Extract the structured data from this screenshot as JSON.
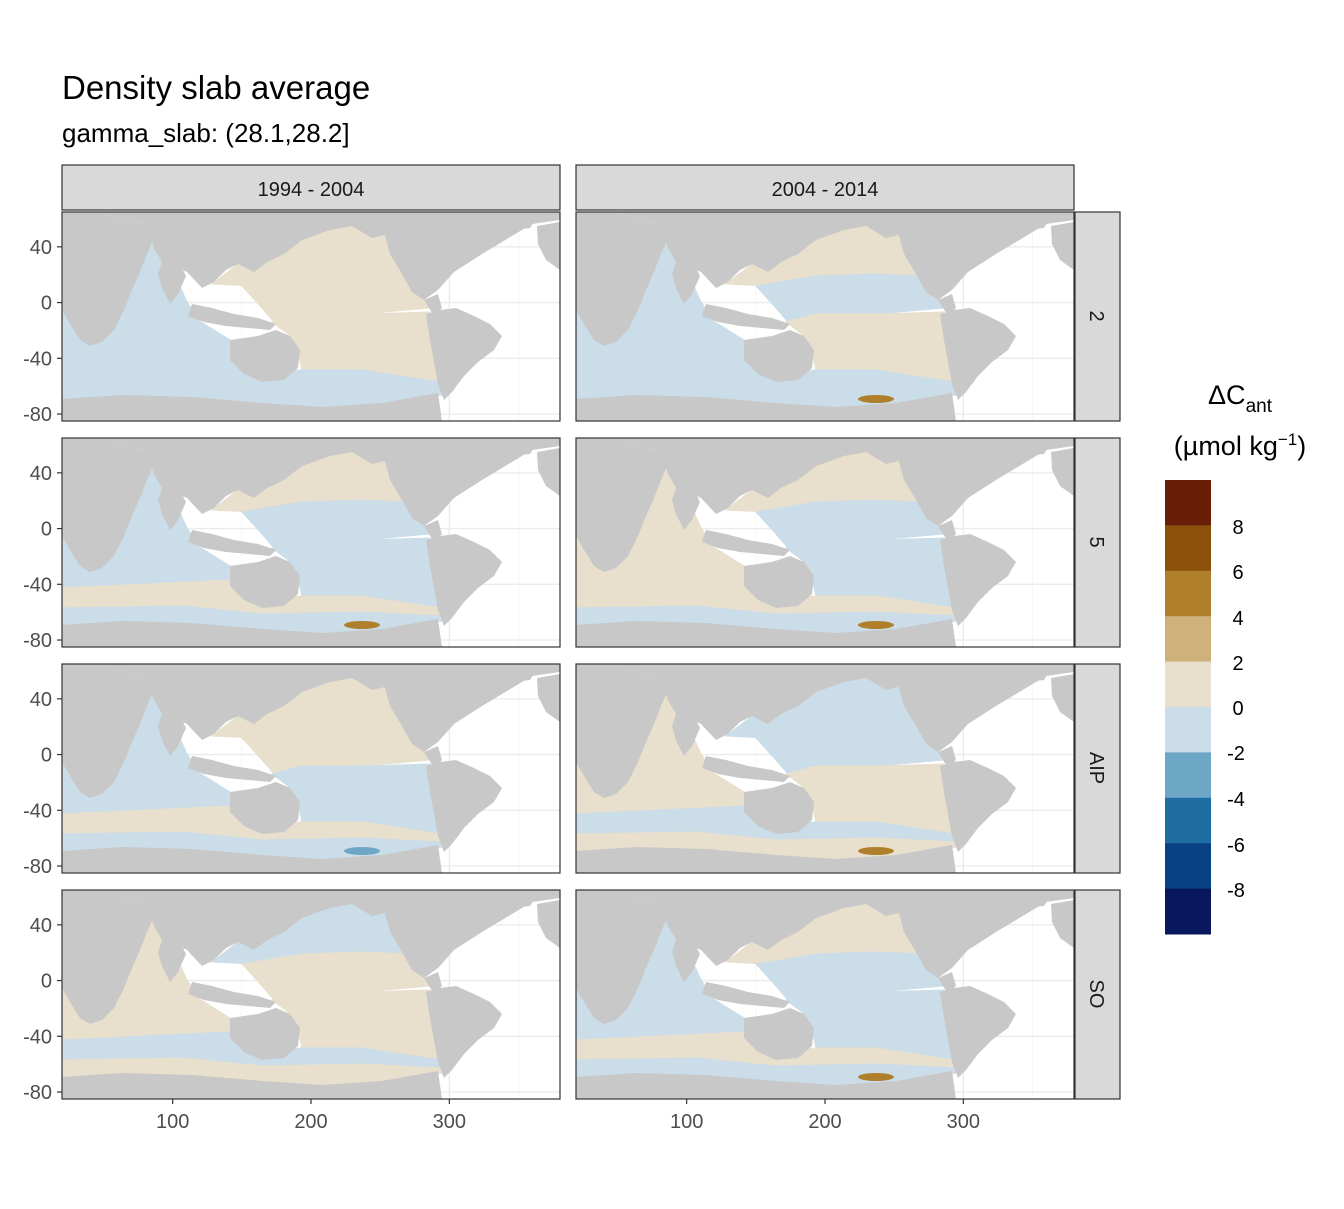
{
  "chart_data": {
    "type": "heatmap",
    "title": "Density slab average",
    "subtitle": "gamma_slab: (28.1,28.2]",
    "facet_columns": [
      "1994 - 2004",
      "2004 - 2014"
    ],
    "facet_rows": [
      "2",
      "5",
      "AIP",
      "SO"
    ],
    "x_axis": {
      "ticks": [
        100,
        200,
        300
      ],
      "range": [
        20,
        380
      ]
    },
    "y_axis": {
      "ticks": [
        40,
        0,
        -40,
        -80
      ],
      "range": [
        -85,
        65
      ]
    },
    "legend": {
      "title_main": "ΔC",
      "title_sub": "ant",
      "unit_pre": "(µmol kg",
      "unit_sup": "−1",
      "unit_post": ")",
      "placement": "right",
      "labels": [
        "8",
        "6",
        "4",
        "2",
        "0",
        "-2",
        "-4",
        "-6",
        "-8"
      ],
      "bins": [
        {
          "from": 8,
          "to": 10,
          "color": "#6b1e07"
        },
        {
          "from": 6,
          "to": 8,
          "color": "#8c510a"
        },
        {
          "from": 4,
          "to": 6,
          "color": "#b07f2c"
        },
        {
          "from": 2,
          "to": 4,
          "color": "#cfb17b"
        },
        {
          "from": 0,
          "to": 2,
          "color": "#e8dfcc"
        },
        {
          "from": -2,
          "to": 0,
          "color": "#cadde8"
        },
        {
          "from": -4,
          "to": -2,
          "color": "#6ea6c6"
        },
        {
          "from": -6,
          "to": -4,
          "color": "#1f6ea3"
        },
        {
          "from": -8,
          "to": -6,
          "color": "#084285"
        },
        {
          "from": -10,
          "to": -8,
          "color": "#08175e"
        }
      ]
    },
    "land_color": "#c8c8c8",
    "panels": [
      {
        "row": "2",
        "col": "1994 - 2004",
        "pacific_north": 1,
        "pacific_mid": 1,
        "south_pacific": 1,
        "indian": -1,
        "south_band": -1,
        "southern_ocean": -1,
        "hotspot": 0
      },
      {
        "row": "2",
        "col": "2004 - 2014",
        "pacific_north": 1,
        "pacific_mid": -1,
        "south_pacific": 1,
        "indian": -1,
        "south_band": -1,
        "southern_ocean": -1,
        "hotspot": 5
      },
      {
        "row": "5",
        "col": "1994 - 2004",
        "pacific_north": 1,
        "pacific_mid": -1,
        "south_pacific": -1,
        "indian": -1,
        "south_band": 1,
        "southern_ocean": -1,
        "hotspot": 5
      },
      {
        "row": "5",
        "col": "2004 - 2014",
        "pacific_north": 1,
        "pacific_mid": -1,
        "south_pacific": -1,
        "indian": 1,
        "south_band": 1,
        "southern_ocean": -1,
        "hotspot": 5
      },
      {
        "row": "AIP",
        "col": "1994 - 2004",
        "pacific_north": 1,
        "pacific_mid": 1,
        "south_pacific": -1,
        "indian": -1,
        "south_band": 1,
        "southern_ocean": -1,
        "hotspot": -3
      },
      {
        "row": "AIP",
        "col": "2004 - 2014",
        "pacific_north": -1,
        "pacific_mid": -1,
        "south_pacific": 1,
        "indian": 1,
        "south_band": -1,
        "southern_ocean": 1,
        "hotspot": 5
      },
      {
        "row": "SO",
        "col": "1994 - 2004",
        "pacific_north": -1,
        "pacific_mid": 1,
        "south_pacific": 1,
        "indian": 1,
        "south_band": -1,
        "southern_ocean": 1,
        "hotspot": 0
      },
      {
        "row": "SO",
        "col": "2004 - 2014",
        "pacific_north": 1,
        "pacific_mid": -1,
        "south_pacific": -1,
        "indian": -1,
        "south_band": 1,
        "southern_ocean": -1,
        "hotspot": 5
      }
    ]
  }
}
